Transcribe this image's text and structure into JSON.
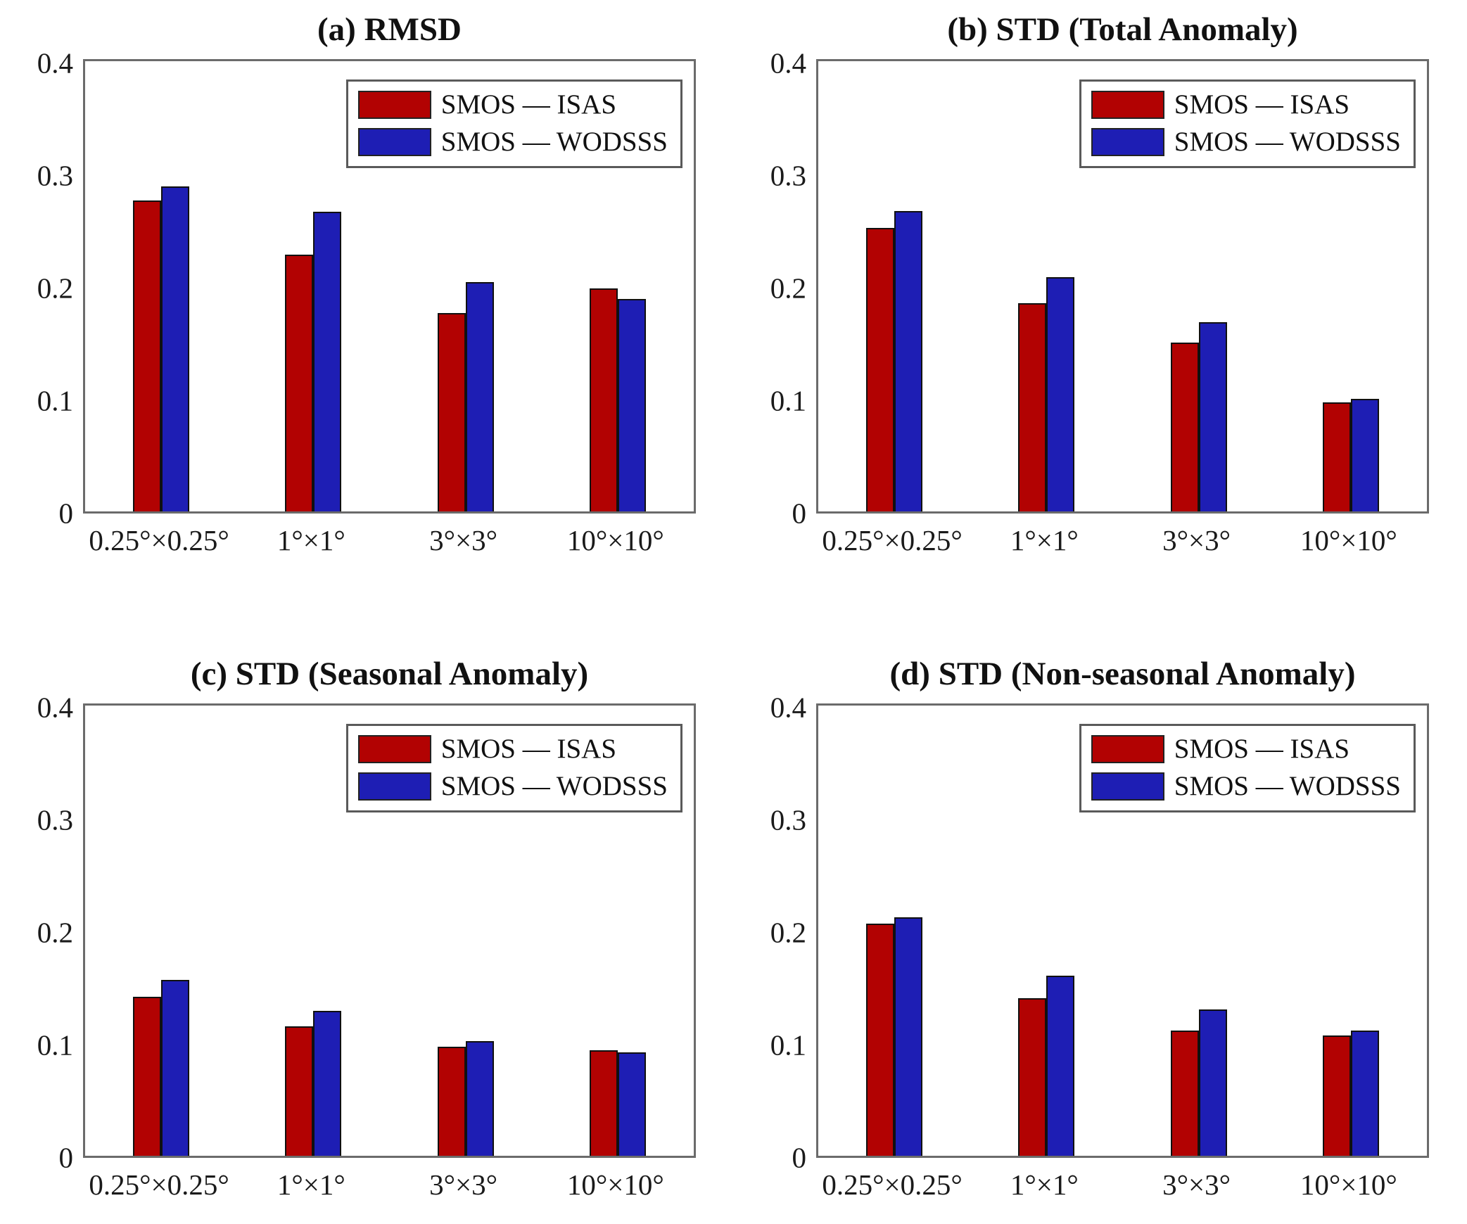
{
  "figure_title": "",
  "ui": {
    "background": "#ffffff",
    "axis_box_color": "#6b6b6b",
    "bar_edge_color": "#101010",
    "text_color": "#1a1a1a"
  },
  "chart_data": [
    {
      "type": "bar",
      "title": "(a) RMSD",
      "categories": [
        "0.25°×0.25°",
        "1°×1°",
        "3°×3°",
        "10°×10°"
      ],
      "series": [
        {
          "name": "SMOS — ISAS",
          "color": "#b20202",
          "values": [
            0.276,
            0.228,
            0.176,
            0.198
          ]
        },
        {
          "name": "SMOS — WODSSS",
          "color": "#1e1eb4",
          "values": [
            0.289,
            0.266,
            0.204,
            0.189
          ]
        }
      ],
      "xlabel": "",
      "ylabel": "",
      "ylim": [
        0,
        0.4
      ],
      "yticks": [
        0,
        0.1,
        0.2,
        0.3,
        0.4
      ],
      "ytick_labels": [
        "0",
        "0.1",
        "0.2",
        "0.3",
        "0.4"
      ],
      "grid": false,
      "legend_position": "top-right"
    },
    {
      "type": "bar",
      "title": "(b) STD (Total Anomaly)",
      "categories": [
        "0.25°×0.25°",
        "1°×1°",
        "3°×3°",
        "10°×10°"
      ],
      "series": [
        {
          "name": "SMOS — ISAS",
          "color": "#b20202",
          "values": [
            0.252,
            0.185,
            0.15,
            0.097
          ]
        },
        {
          "name": "SMOS — WODSSS",
          "color": "#1e1eb4",
          "values": [
            0.267,
            0.208,
            0.168,
            0.1
          ]
        }
      ],
      "xlabel": "",
      "ylabel": "",
      "ylim": [
        0,
        0.4
      ],
      "yticks": [
        0,
        0.1,
        0.2,
        0.3,
        0.4
      ],
      "ytick_labels": [
        "0",
        "0.1",
        "0.2",
        "0.3",
        "0.4"
      ],
      "grid": false,
      "legend_position": "top-right"
    },
    {
      "type": "bar",
      "title": "(c) STD (Seasonal Anomaly)",
      "categories": [
        "0.25°×0.25°",
        "1°×1°",
        "3°×3°",
        "10°×10°"
      ],
      "series": [
        {
          "name": "SMOS — ISAS",
          "color": "#b20202",
          "values": [
            0.141,
            0.115,
            0.097,
            0.094
          ]
        },
        {
          "name": "SMOS — WODSSS",
          "color": "#1e1eb4",
          "values": [
            0.156,
            0.129,
            0.102,
            0.092
          ]
        }
      ],
      "xlabel": "",
      "ylabel": "",
      "ylim": [
        0,
        0.4
      ],
      "yticks": [
        0,
        0.1,
        0.2,
        0.3,
        0.4
      ],
      "ytick_labels": [
        "0",
        "0.1",
        "0.2",
        "0.3",
        "0.4"
      ],
      "grid": false,
      "legend_position": "top-right"
    },
    {
      "type": "bar",
      "title": "(d) STD (Non-seasonal Anomaly)",
      "categories": [
        "0.25°×0.25°",
        "1°×1°",
        "3°×3°",
        "10°×10°"
      ],
      "series": [
        {
          "name": "SMOS — ISAS",
          "color": "#b20202",
          "values": [
            0.206,
            0.14,
            0.111,
            0.107
          ]
        },
        {
          "name": "SMOS — WODSSS",
          "color": "#1e1eb4",
          "values": [
            0.212,
            0.16,
            0.13,
            0.111
          ]
        }
      ],
      "xlabel": "",
      "ylabel": "",
      "ylim": [
        0,
        0.4
      ],
      "yticks": [
        0,
        0.1,
        0.2,
        0.3,
        0.4
      ],
      "ytick_labels": [
        "0",
        "0.1",
        "0.2",
        "0.3",
        "0.4"
      ],
      "grid": false,
      "legend_position": "top-right"
    }
  ]
}
